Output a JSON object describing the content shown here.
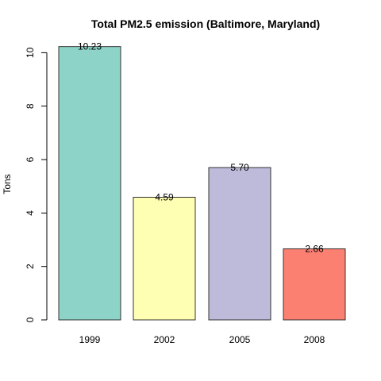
{
  "chart_data": {
    "type": "bar",
    "title": "Total PM2.5 emission (Baltimore, Maryland)",
    "xlabel": "",
    "ylabel": "Tons",
    "categories": [
      "1999",
      "2002",
      "2005",
      "2008"
    ],
    "values": [
      10.23,
      4.59,
      5.7,
      2.66
    ],
    "value_labels": [
      "10.23",
      "4.59",
      "5.70",
      "2.66"
    ],
    "colors": [
      "#8DD3C7",
      "#FFFFB3",
      "#BEBADA",
      "#FB8072"
    ],
    "ylim": [
      0,
      10.23
    ],
    "yticks": [
      0,
      2,
      4,
      6,
      8,
      10
    ],
    "ytick_labels": [
      "0",
      "2",
      "4",
      "6",
      "8",
      "10"
    ],
    "grid": false,
    "legend": "none"
  }
}
